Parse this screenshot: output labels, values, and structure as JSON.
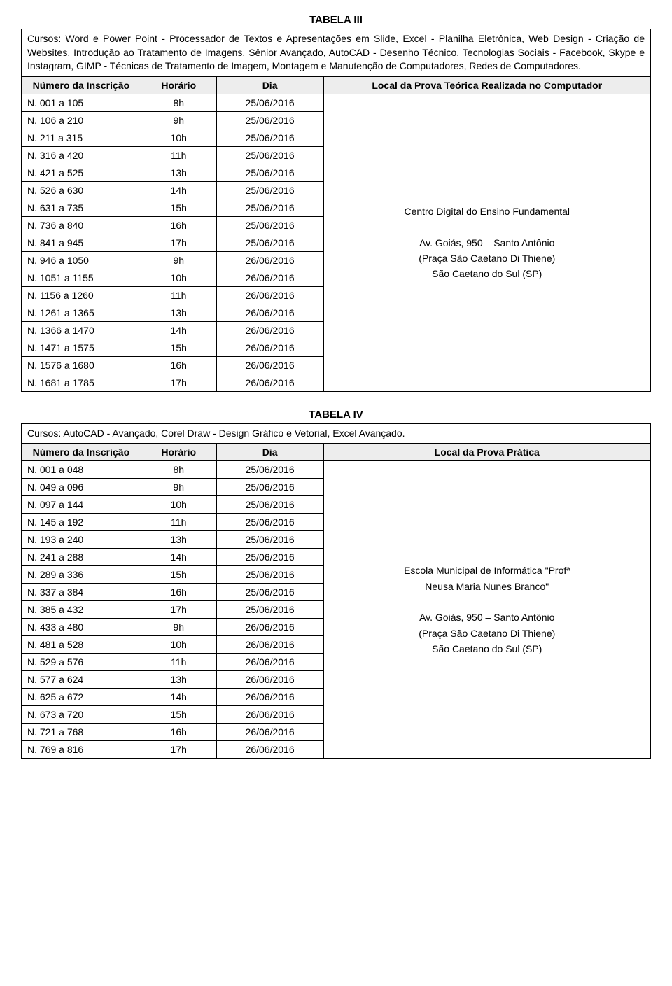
{
  "table3": {
    "title": "TABELA III",
    "description": "Cursos: Word e Power Point - Processador de Textos e Apresentações em Slide, Excel - Planilha Eletrônica, Web Design - Criação de Websites, Introdução ao Tratamento de Imagens, Sênior Avançado, AutoCAD - Desenho Técnico, Tecnologias Sociais - Facebook, Skype e Instagram, GIMP - Técnicas de Tratamento de Imagem, Montagem e Manutenção de Computadores, Redes de Computadores.",
    "headers": {
      "numero": "Número da Inscrição",
      "horario": "Horário",
      "dia": "Dia",
      "local": "Local da Prova Teórica Realizada no Computador"
    },
    "rows": [
      {
        "n": "N. 001 a 105",
        "h": "8h",
        "d": "25/06/2016"
      },
      {
        "n": "N. 106 a 210",
        "h": "9h",
        "d": "25/06/2016"
      },
      {
        "n": "N. 211 a 315",
        "h": "10h",
        "d": "25/06/2016"
      },
      {
        "n": "N. 316 a 420",
        "h": "11h",
        "d": "25/06/2016"
      },
      {
        "n": "N. 421 a 525",
        "h": "13h",
        "d": "25/06/2016"
      },
      {
        "n": "N. 526 a 630",
        "h": "14h",
        "d": "25/06/2016"
      },
      {
        "n": "N. 631 a 735",
        "h": "15h",
        "d": "25/06/2016"
      },
      {
        "n": "N. 736 a 840",
        "h": "16h",
        "d": "25/06/2016"
      },
      {
        "n": "N. 841 a 945",
        "h": "17h",
        "d": "25/06/2016"
      },
      {
        "n": "N. 946 a 1050",
        "h": "9h",
        "d": "26/06/2016"
      },
      {
        "n": "N. 1051 a 1155",
        "h": "10h",
        "d": "26/06/2016"
      },
      {
        "n": "N. 1156 a 1260",
        "h": "11h",
        "d": "26/06/2016"
      },
      {
        "n": "N. 1261 a 1365",
        "h": "13h",
        "d": "26/06/2016"
      },
      {
        "n": "N. 1366 a 1470",
        "h": "14h",
        "d": "26/06/2016"
      },
      {
        "n": "N. 1471 a 1575",
        "h": "15h",
        "d": "26/06/2016"
      },
      {
        "n": "N. 1576 a 1680",
        "h": "16h",
        "d": "26/06/2016"
      },
      {
        "n": "N. 1681 a 1785",
        "h": "17h",
        "d": "26/06/2016"
      }
    ],
    "location": {
      "line1": "Centro Digital do Ensino Fundamental",
      "line2": "Av. Goiás, 950 – Santo Antônio",
      "line3": "(Praça São Caetano Di Thiene)",
      "line4": "São Caetano do Sul (SP)"
    }
  },
  "table4": {
    "title": "TABELA IV",
    "description": "Cursos: AutoCAD - Avançado, Corel Draw - Design Gráfico e Vetorial, Excel Avançado.",
    "headers": {
      "numero": "Número da Inscrição",
      "horario": "Horário",
      "dia": "Dia",
      "local": "Local da Prova Prática"
    },
    "rows": [
      {
        "n": "N. 001 a 048",
        "h": "8h",
        "d": "25/06/2016"
      },
      {
        "n": "N. 049 a 096",
        "h": "9h",
        "d": "25/06/2016"
      },
      {
        "n": "N. 097 a 144",
        "h": "10h",
        "d": "25/06/2016"
      },
      {
        "n": "N. 145 a 192",
        "h": "11h",
        "d": "25/06/2016"
      },
      {
        "n": "N. 193 a 240",
        "h": "13h",
        "d": "25/06/2016"
      },
      {
        "n": "N. 241 a 288",
        "h": "14h",
        "d": "25/06/2016"
      },
      {
        "n": "N. 289 a 336",
        "h": "15h",
        "d": "25/06/2016"
      },
      {
        "n": "N. 337 a 384",
        "h": "16h",
        "d": "25/06/2016"
      },
      {
        "n": "N. 385 a 432",
        "h": "17h",
        "d": "25/06/2016"
      },
      {
        "n": "N. 433 a 480",
        "h": "9h",
        "d": "26/06/2016"
      },
      {
        "n": "N. 481 a 528",
        "h": "10h",
        "d": "26/06/2016"
      },
      {
        "n": "N. 529 a 576",
        "h": "11h",
        "d": "26/06/2016"
      },
      {
        "n": "N. 577 a 624",
        "h": "13h",
        "d": "26/06/2016"
      },
      {
        "n": "N. 625 a 672",
        "h": "14h",
        "d": "26/06/2016"
      },
      {
        "n": "N. 673 a 720",
        "h": "15h",
        "d": "26/06/2016"
      },
      {
        "n": "N. 721 a 768",
        "h": "16h",
        "d": "26/06/2016"
      },
      {
        "n": "N. 769 a 816",
        "h": "17h",
        "d": "26/06/2016"
      }
    ],
    "location": {
      "line1": "Escola Municipal de Informática \"Profª",
      "line2": "Neusa Maria Nunes Branco\"",
      "line3": "Av. Goiás, 950 – Santo Antônio",
      "line4": "(Praça São Caetano Di Thiene)",
      "line5": "São Caetano do Sul (SP)"
    }
  }
}
